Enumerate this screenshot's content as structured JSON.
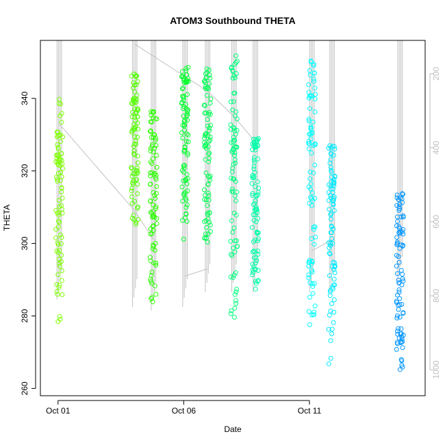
{
  "chart_data": {
    "type": "scatter",
    "title": "ATOM3 Southbound THETA",
    "xlabel": "Date",
    "ylabel": "THETA",
    "x_ticks": [
      {
        "value": 1,
        "label": "Oct 01"
      },
      {
        "value": 6,
        "label": "Oct 06"
      },
      {
        "value": 11,
        "label": "Oct 11"
      }
    ],
    "y_ticks": [
      260,
      280,
      300,
      320,
      340
    ],
    "right_ticks": [
      200,
      400,
      600,
      800,
      1000
    ],
    "xlim": [
      0.3,
      15.6
    ],
    "ylim": [
      258,
      356
    ],
    "right_lim": [
      110,
      1070
    ],
    "grid": false,
    "legend": "none",
    "colors": {
      "axis": "#000000",
      "right_axis": "#bebebe",
      "profile_lines": "#c0c0c0",
      "point_colors": [
        "#7fff00",
        "#00ff00",
        "#00ff7f",
        "#00ffff",
        "#00bfff",
        "#007fff"
      ]
    },
    "profiles": [
      {
        "day": 1.05,
        "theta_range": [
          277,
          340
        ],
        "color": "#7fff00",
        "depth_range": [
          110,
          810
        ]
      },
      {
        "day": 4.05,
        "theta_range": [
          303,
          347
        ],
        "color": "#55ff00",
        "depth_range": [
          110,
          830
        ]
      },
      {
        "day": 4.8,
        "theta_range": [
          283,
          338
        ],
        "color": "#2bff00",
        "depth_range": [
          110,
          840
        ]
      },
      {
        "day": 6.05,
        "theta_range": [
          300,
          349
        ],
        "color": "#00ff2b",
        "depth_range": [
          110,
          830
        ]
      },
      {
        "day": 6.95,
        "theta_range": [
          300,
          349
        ],
        "color": "#00ff55",
        "depth_range": [
          110,
          790
        ]
      },
      {
        "day": 8.0,
        "theta_range": [
          278,
          352
        ],
        "color": "#00ff7f",
        "depth_range": [
          110,
          790
        ]
      },
      {
        "day": 8.85,
        "theta_range": [
          287,
          330
        ],
        "color": "#00ffaa",
        "depth_range": [
          110,
          790
        ]
      },
      {
        "day": 11.1,
        "theta_range": [
          275,
          351
        ],
        "color": "#00ffff",
        "depth_range": [
          110,
          790
        ]
      },
      {
        "day": 11.9,
        "theta_range": [
          266,
          327
        ],
        "color": "#00eaff",
        "depth_range": [
          110,
          790
        ]
      },
      {
        "day": 14.6,
        "theta_range": [
          262,
          315
        ],
        "color": "#0095ff",
        "depth_range": [
          110,
          770
        ]
      }
    ],
    "connector_lines": [
      {
        "from": [
          1.05,
          333
        ],
        "to": [
          4.05,
          309
        ]
      },
      {
        "from": [
          4.05,
          309
        ],
        "to": [
          4.8,
          301
        ]
      },
      {
        "from": [
          4.05,
          355
        ],
        "to": [
          6.95,
          342
        ]
      },
      {
        "from": [
          6.95,
          342
        ],
        "to": [
          8.0,
          335
        ]
      },
      {
        "from": [
          8.0,
          335
        ],
        "to": [
          8.85,
          328
        ]
      },
      {
        "from": [
          6.05,
          291
        ],
        "to": [
          6.95,
          293
        ]
      },
      {
        "from": [
          11.1,
          298
        ],
        "to": [
          11.9,
          301
        ]
      }
    ]
  }
}
